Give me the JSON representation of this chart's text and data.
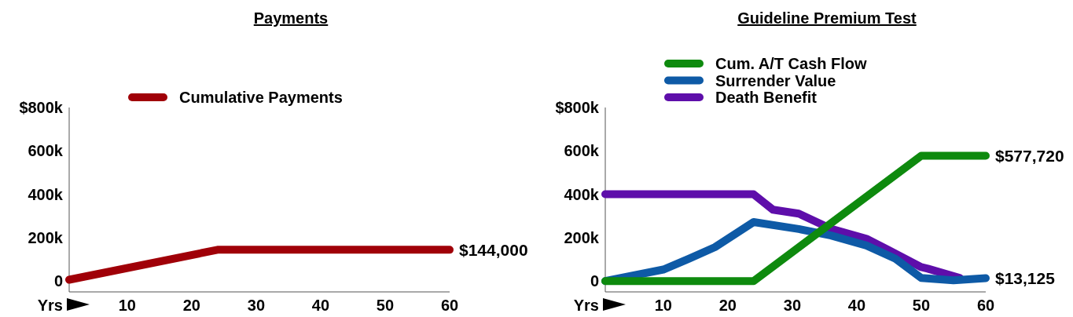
{
  "chart_data": [
    {
      "type": "line",
      "title": "Payments",
      "xlabel": "Yrs",
      "xlim": [
        1,
        60
      ],
      "xticks": [
        10,
        20,
        30,
        40,
        50,
        60
      ],
      "ylim": [
        -50000,
        800000
      ],
      "yticks": [
        0,
        {
          "value": 200000,
          "label": "200k"
        },
        {
          "value": 400000,
          "label": "400k"
        },
        {
          "value": 600000,
          "label": "600k"
        },
        {
          "value": 800000,
          "label": "$800k"
        }
      ],
      "grid": false,
      "legend": "top",
      "marker": "none",
      "line_style": "solid",
      "series": [
        {
          "name": "Cumulative Payments",
          "color": "#a00008",
          "x": [
            1,
            24,
            60
          ],
          "values": [
            6000,
            144000,
            144000
          ],
          "value_labels": [
            null,
            null,
            "$144,000"
          ]
        }
      ]
    },
    {
      "type": "line",
      "title": "Guideline Premium Test",
      "xlabel": "Yrs",
      "xlim": [
        1,
        60
      ],
      "xticks": [
        10,
        20,
        30,
        40,
        50,
        60
      ],
      "ylim": [
        -50000,
        800000
      ],
      "yticks": [
        0,
        {
          "value": 200000,
          "label": "200k"
        },
        {
          "value": 400000,
          "label": "400k"
        },
        {
          "value": 600000,
          "label": "600k"
        },
        {
          "value": 800000,
          "label": "$800k"
        }
      ],
      "grid": false,
      "legend": "top",
      "marker": "none",
      "line_style": "solid",
      "series": [
        {
          "name": "Cum. A/T Cash Flow",
          "color": "#0e8a0e",
          "x": [
            1,
            24,
            50,
            60
          ],
          "values": [
            0,
            0,
            577720,
            577720
          ],
          "value_labels": [
            null,
            null,
            null,
            "$577,720"
          ]
        },
        {
          "name": "Surrender Value",
          "color": "#0e5aa6",
          "x": [
            1,
            10,
            14,
            18,
            24,
            31,
            36,
            41.5,
            46,
            50,
            55,
            60
          ],
          "values": [
            0,
            53000,
            103000,
            156000,
            272000,
            240000,
            210000,
            164000,
            103000,
            14000,
            3000,
            13125
          ],
          "value_labels": [
            null,
            null,
            null,
            null,
            null,
            null,
            null,
            null,
            null,
            null,
            null,
            "$13,125"
          ]
        },
        {
          "name": "Death Benefit",
          "color": "#5e0eaa",
          "x": [
            1,
            24,
            27,
            31,
            36,
            41.5,
            45,
            50,
            51,
            56
          ],
          "values": [
            400000,
            400000,
            329000,
            311000,
            241000,
            195000,
            142000,
            64000,
            57000,
            14000
          ]
        }
      ]
    }
  ]
}
